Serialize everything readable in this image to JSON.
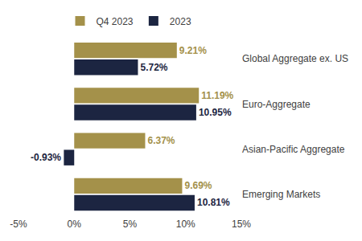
{
  "chart_data": {
    "type": "bar",
    "orientation": "horizontal",
    "categories": [
      "Global Aggregate ex. US",
      "Euro-Aggregate",
      "Asian-Pacific Aggregate",
      "Emerging Markets"
    ],
    "series": [
      {
        "name": "Q4 2023",
        "color": "#a4914a",
        "values": [
          9.21,
          11.19,
          6.37,
          9.69
        ],
        "value_labels": [
          "9.21%",
          "11.19%",
          "6.37%",
          "9.69%"
        ]
      },
      {
        "name": "2023",
        "color": "#1c2541",
        "values": [
          5.72,
          10.95,
          -0.93,
          10.81
        ],
        "value_labels": [
          "5.72%",
          "10.95%",
          "-0.93%",
          "10.81%"
        ]
      }
    ],
    "xlim": [
      -5,
      15
    ],
    "xticks": [
      {
        "value": -5,
        "label": "-5%"
      },
      {
        "value": 0,
        "label": "0%"
      },
      {
        "value": 5,
        "label": "5%"
      },
      {
        "value": 10,
        "label": "10%"
      },
      {
        "value": 15,
        "label": "15%"
      }
    ],
    "grid": false,
    "legend": "top",
    "data_labels": true
  }
}
